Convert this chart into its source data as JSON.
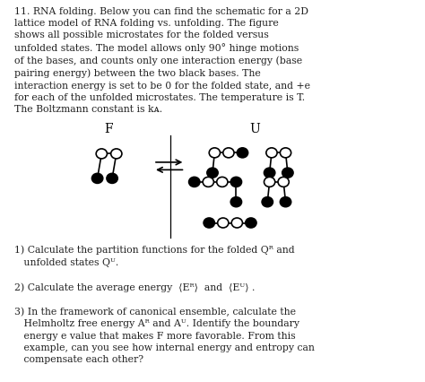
{
  "bg_color": "#ffffff",
  "text_color": "#222222",
  "circle_r": 0.013,
  "line_width": 1.2,
  "font_size": 7.8,
  "fig_width": 4.74,
  "fig_height": 4.26,
  "dpi": 100,
  "title_lines": [
    "11. RNA folding. Below you can find the schematic for a 2D",
    "lattice model of RNA folding vs. unfolding. The figure",
    "shows all possible microstates for the folded versus",
    "unfolded states. The model allows only 90° hinge motions",
    "of the bases, and counts only one interaction energy (base",
    "pairing energy) between the two black bases. The",
    "interaction energy is set to be 0 for the folded state, and +e",
    "for each of the unfolded microstates. The temperature is T.",
    "The Boltzmann constant is kᴀ."
  ],
  "q1_lines": [
    "1) Calculate the partition functions for the folded Qᴿ and",
    "   unfolded states Qᵁ."
  ],
  "q2_line": "2) Calculate the average energy  ⟨Eᴿ⟩  and  ⟨Eᵁ⟩ .",
  "q3_lines": [
    "3) In the framework of canonical ensemble, calculate the",
    "   Helmholtz free energy Aᴿ and Aᵁ. Identify the boundary",
    "   energy e value that makes F more favorable. From this",
    "   example, can you see how internal energy and entropy can",
    "   compensate each other?"
  ]
}
